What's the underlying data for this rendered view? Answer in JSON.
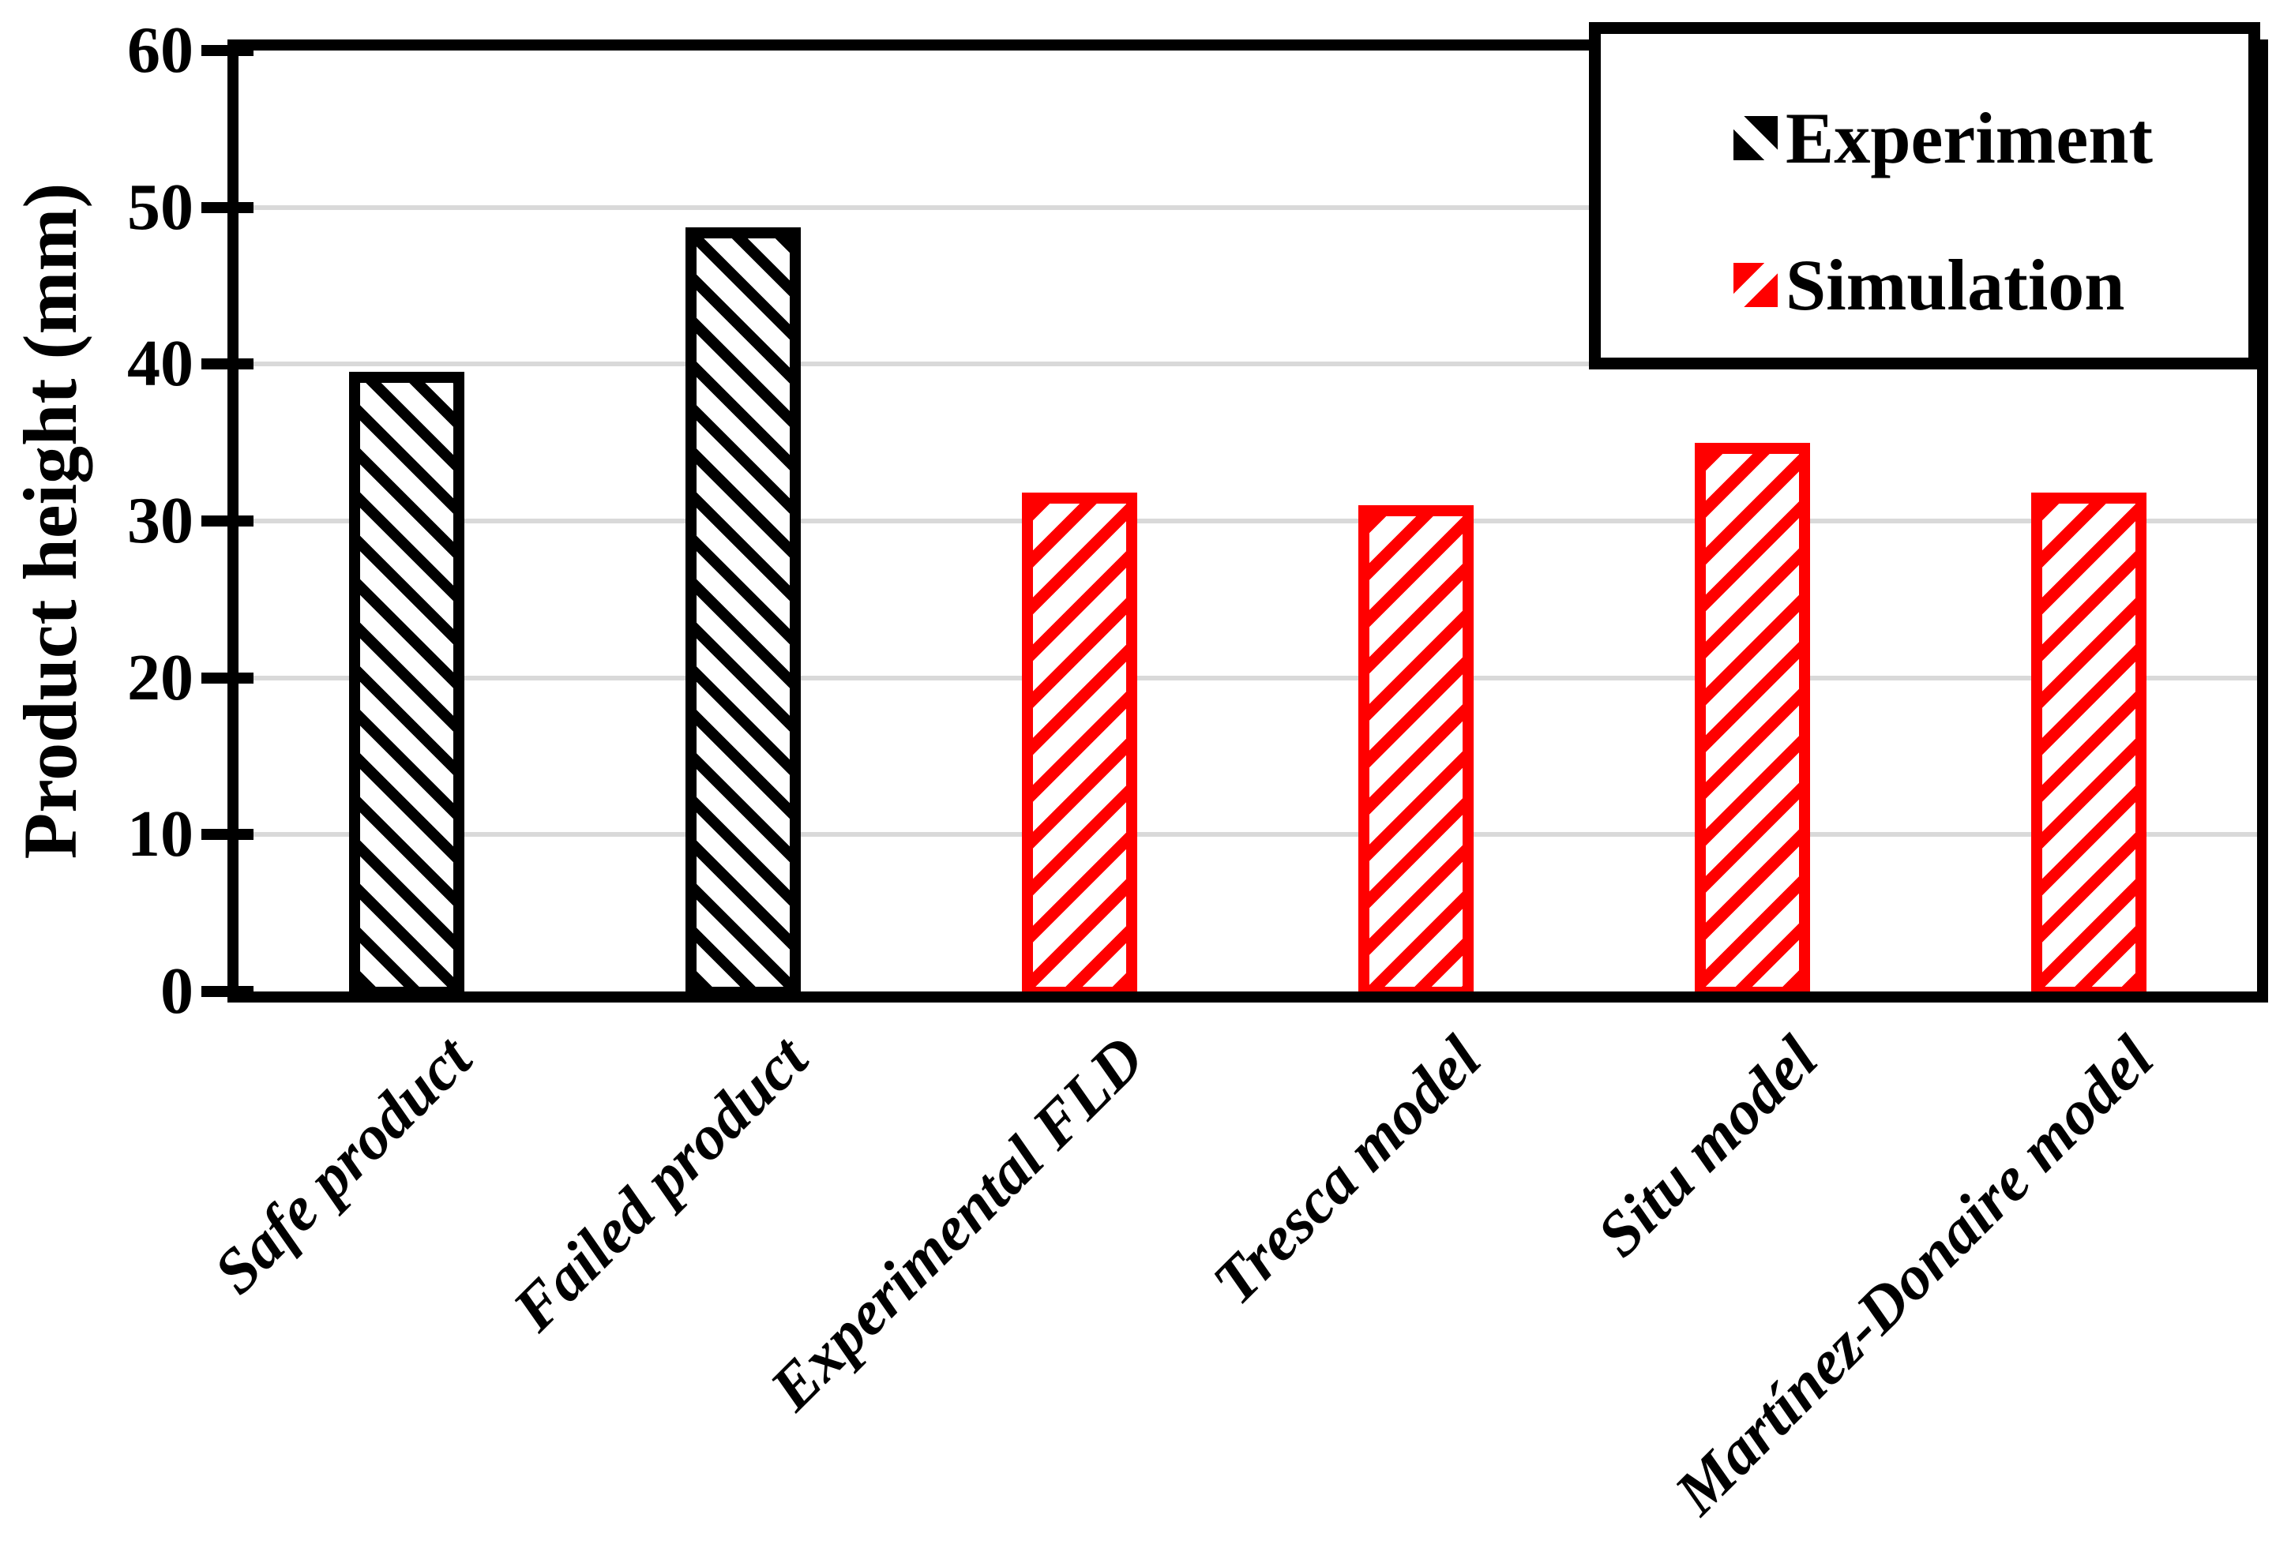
{
  "chart_data": {
    "type": "bar",
    "title": "",
    "xlabel": "",
    "ylabel": "Product height (mm)",
    "ylim": [
      0,
      60
    ],
    "yticks": [
      0,
      10,
      20,
      30,
      40,
      50,
      60
    ],
    "grid": "horizontal-light-gray",
    "gridline_color": "#d9d9d9",
    "legend_position": "top-right",
    "categories": [
      "Safe product",
      "Failed product",
      "Experimental FLD",
      "Tresca model",
      "Situ model",
      "Martínez-Donaire model"
    ],
    "series": [
      {
        "name": "Experiment",
        "color": "#000000",
        "hatch": "backslash-diagonal",
        "values": [
          39.5,
          48.7,
          null,
          null,
          null,
          null
        ]
      },
      {
        "name": "Simulation",
        "color": "#ff0000",
        "hatch": "slash-diagonal",
        "values": [
          null,
          null,
          31.8,
          31.0,
          35.0,
          31.8
        ]
      }
    ]
  },
  "legend": {
    "items": [
      {
        "label": "Experiment",
        "swatch": "black-backslash-hatch"
      },
      {
        "label": "Simulation",
        "swatch": "red-slash-hatch"
      }
    ]
  },
  "colors": {
    "experiment": "#000000",
    "simulation": "#ff0000",
    "gridline": "#d9d9d9",
    "background": "#ffffff"
  }
}
